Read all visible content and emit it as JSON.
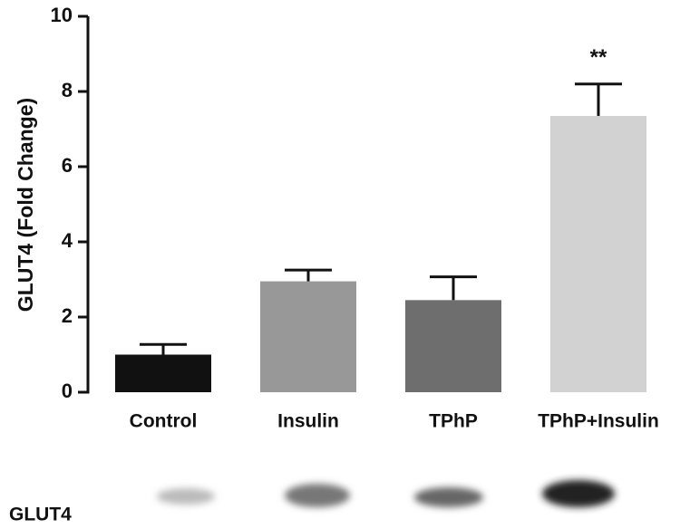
{
  "chart_data": {
    "type": "bar",
    "ylabel": "GLUT4 (Fold Change)",
    "categories": [
      "Control",
      "Insulin",
      "TPhP",
      "TPhP+Insulin"
    ],
    "values": [
      1.0,
      2.95,
      2.45,
      7.35
    ],
    "errors": [
      0.27,
      0.3,
      0.62,
      0.85
    ],
    "colors": [
      "#111111",
      "#989898",
      "#6e6e6e",
      "#d2d2d2"
    ],
    "ylim": [
      0,
      10
    ],
    "yticks": [
      0,
      2,
      4,
      6,
      8,
      10
    ],
    "annotations": [
      {
        "text": "**"
      }
    ],
    "blot_label": "GLUT4"
  }
}
